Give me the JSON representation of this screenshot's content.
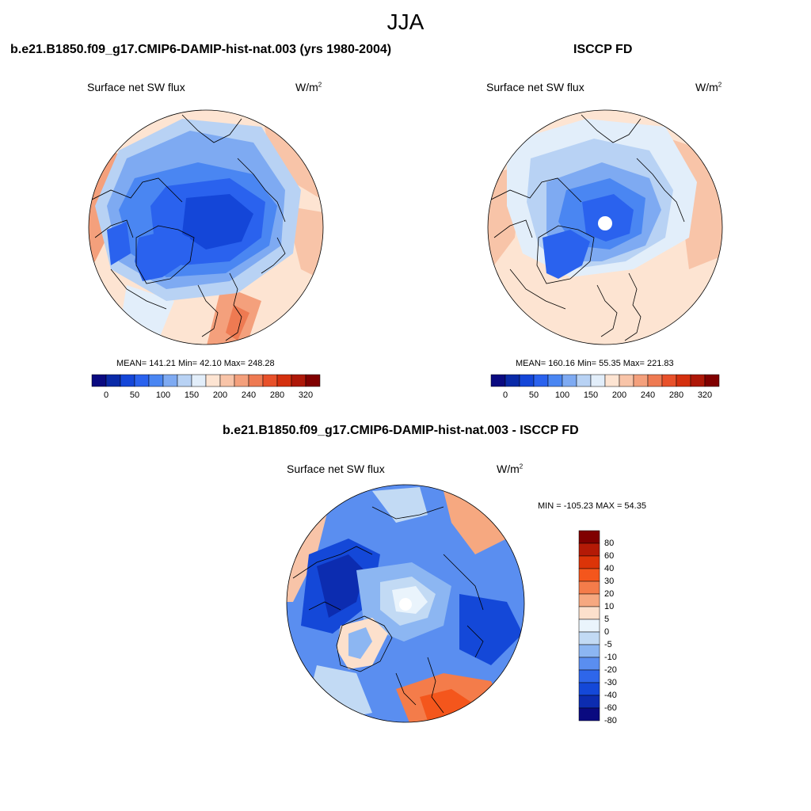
{
  "figure": {
    "title": "JJA"
  },
  "panels": [
    {
      "title": "b.e21.B1850.f09_g17.CMIP6-DAMIP-hist-nat.003 (yrs 1980-2004)",
      "variable": "Surface net SW flux",
      "units_base": "W/m",
      "units_exp": "2",
      "stats": "MEAN= 141.21  Min=  42.10  Max= 248.28"
    },
    {
      "title": "ISCCP FD",
      "variable": "Surface net SW flux",
      "units_base": "W/m",
      "units_exp": "2",
      "stats": "MEAN= 160.16  Min=  55.35  Max= 221.83"
    },
    {
      "title": "b.e21.B1850.f09_g17.CMIP6-DAMIP-hist-nat.003 - ISCCP FD",
      "variable": "Surface net SW flux",
      "units_base": "W/m",
      "units_exp": "2",
      "stats": "MIN = -105.23 MAX =  54.35"
    }
  ],
  "colorbars": {
    "abs": {
      "colors": [
        "#0a0a80",
        "#0a2aa8",
        "#1446d8",
        "#2a62ee",
        "#4a86f2",
        "#7eaaf2",
        "#b8d2f4",
        "#e2eefa",
        "#fde4d2",
        "#f8c4a8",
        "#f4a07c",
        "#ee7a52",
        "#e8512a",
        "#d4300e",
        "#ae1808",
        "#800000"
      ],
      "tick_labels": [
        "0",
        "50",
        "100",
        "150",
        "200",
        "240",
        "280",
        "320"
      ]
    },
    "diff": {
      "colors": [
        "#800000",
        "#b41a06",
        "#dc3408",
        "#f4561c",
        "#f47c4a",
        "#f6a880",
        "#fce0cc",
        "#eaf4fc",
        "#c2daf4",
        "#8cb6f2",
        "#5a8ef0",
        "#2e66ea",
        "#1448d8",
        "#0c2cb0",
        "#0a0a80"
      ],
      "tick_labels": [
        "80",
        "60",
        "40",
        "30",
        "20",
        "10",
        "5",
        "0",
        "-5",
        "-10",
        "-20",
        "-30",
        "-40",
        "-60",
        "-80"
      ]
    }
  }
}
